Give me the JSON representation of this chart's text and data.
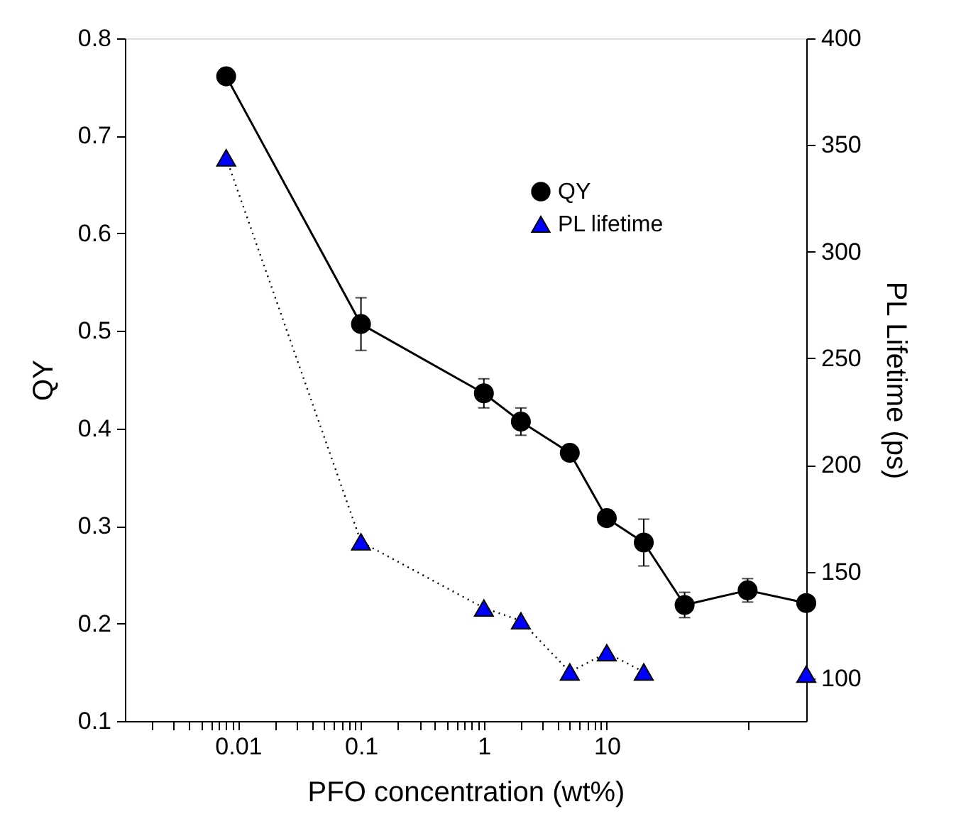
{
  "chart_data": {
    "type": "line",
    "xlabel": "PFO concentration (wt%)",
    "ylabel": "QY",
    "y2label": "PL Lifetime (ps)",
    "x": [
      0.008,
      0.1,
      1,
      2,
      5,
      10,
      20,
      43,
      140,
      420
    ],
    "xlim": [
      0.0012,
      420
    ],
    "xticks": [
      {
        "value": 0.002,
        "label": null
      },
      {
        "value": 0.003,
        "label": null
      },
      {
        "value": 0.004,
        "label": null
      },
      {
        "value": 0.005,
        "label": null
      },
      {
        "value": 0.006,
        "label": null
      },
      {
        "value": 0.007,
        "label": null
      },
      {
        "value": 0.008,
        "label": null
      },
      {
        "value": 0.009,
        "label": null
      },
      0.01,
      {
        "value": 0.02,
        "label": null
      },
      {
        "value": 0.03,
        "label": null
      },
      {
        "value": 0.04,
        "label": null
      },
      {
        "value": 0.05,
        "label": null
      },
      {
        "value": 0.06,
        "label": null
      },
      {
        "value": 0.07,
        "label": null
      },
      {
        "value": 0.08,
        "label": null
      },
      {
        "value": 0.09,
        "label": null
      },
      0.1,
      {
        "value": 0.2,
        "label": null
      },
      {
        "value": 0.3,
        "label": null
      },
      {
        "value": 0.4,
        "label": null
      },
      {
        "value": 0.5,
        "label": null
      },
      {
        "value": 0.6,
        "label": null
      },
      {
        "value": 0.7,
        "label": null
      },
      {
        "value": 0.8,
        "label": null
      },
      {
        "value": 0.9,
        "label": null
      },
      1,
      {
        "value": 2,
        "label": null
      },
      {
        "value": 3,
        "label": null
      },
      {
        "value": 4,
        "label": null
      },
      {
        "value": 5,
        "label": null
      },
      {
        "value": 6,
        "label": null
      },
      {
        "value": 7,
        "label": null
      },
      {
        "value": 8,
        "label": null
      },
      {
        "value": 9,
        "label": null
      },
      10,
      {
        "value": 140,
        "label": null
      }
    ],
    "ylim": [
      0.1,
      0.8
    ],
    "yticks": [
      0.1,
      0.2,
      0.3,
      0.4,
      0.5,
      0.6,
      0.7,
      0.8
    ],
    "y2lim": [
      80,
      400
    ],
    "y2ticks": [
      100,
      150,
      200,
      250,
      300,
      350,
      400
    ],
    "log": "x",
    "grid": false,
    "legend": "top right",
    "series": [
      {
        "name": "QY",
        "color": "#000000",
        "marker": "circle",
        "line_style": "solid",
        "values": [
          0.761,
          0.507,
          0.436,
          0.407,
          0.375,
          0.308,
          0.283,
          0.219,
          0.234,
          0.221
        ],
        "errors": [
          null,
          0.027,
          0.015,
          0.014,
          null,
          null,
          0.024,
          0.013,
          0.012,
          null
        ]
      },
      {
        "name": "PL lifetime",
        "color": "#0000ff",
        "marker": "triangle",
        "line_style": "dotted",
        "axis": "y2",
        "values": [
          344,
          164,
          133,
          127,
          103,
          112,
          103,
          null,
          null,
          102
        ]
      }
    ]
  }
}
